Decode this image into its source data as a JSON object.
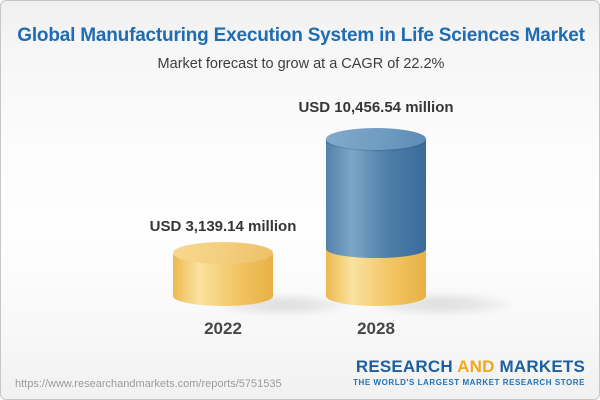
{
  "header": {
    "title": "Global Manufacturing Execution System in Life Sciences Market",
    "subtitle": "Market forecast to grow at a CAGR of 22.2%"
  },
  "chart_data": {
    "type": "bar",
    "categories": [
      "2022",
      "2028"
    ],
    "values": [
      3139.14,
      10456.54
    ],
    "unit": "USD million",
    "value_labels": [
      "USD 3,139.14 million",
      "USD 10,456.54 million"
    ],
    "cagr": "22.2%",
    "title": "Global Manufacturing Execution System in Life Sciences Market",
    "xlabel": "",
    "ylabel": "",
    "legend": "none",
    "grid": "off",
    "style": "3d-cylinder",
    "colors": {
      "bar_2022": "#f0c05f",
      "bar_2028_upper": "#5d8bb4",
      "bar_2028_base": "#f0c05f",
      "title_blue": "#1e6cb2"
    },
    "layout_note": "2028 cylinder shows gold base segment equal to 2022 value with blue growth segment above"
  },
  "footer": {
    "url": "https://www.researchandmarkets.com/reports/5751535",
    "logo": {
      "research": "RESEARCH",
      "and": "AND",
      "markets": "MARKETS",
      "tagline": "THE WORLD'S LARGEST MARKET RESEARCH STORE"
    }
  }
}
